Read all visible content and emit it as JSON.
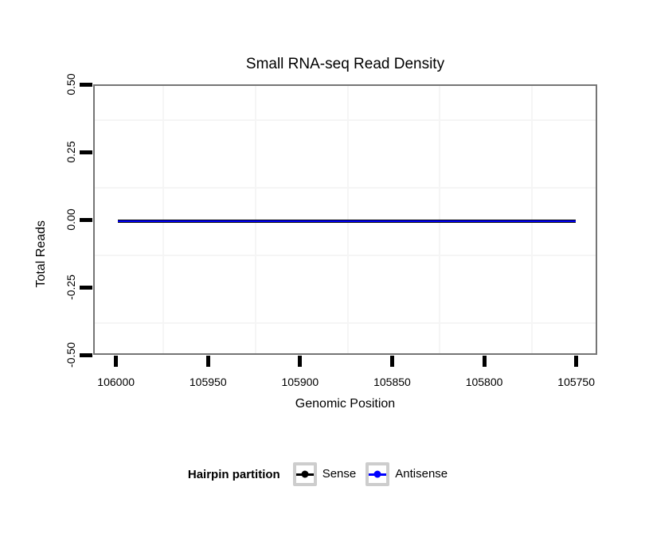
{
  "chart_data": {
    "type": "line",
    "title": "Small RNA-seq Read Density",
    "xlabel": "Genomic Position",
    "ylabel": "Total Reads",
    "x_axis": {
      "reversed": true,
      "lim": [
        106012.4,
        105738.6
      ],
      "ticks": [
        106000,
        105950,
        105900,
        105850,
        105800,
        105750
      ],
      "tick_labels": [
        "106000",
        "105950",
        "105900",
        "105850",
        "105800",
        "105750"
      ]
    },
    "y_axis": {
      "lim": [
        -0.5,
        0.5
      ],
      "ticks": [
        0.5,
        0.25,
        0,
        -0.25,
        -0.5
      ],
      "tick_labels": [
        "0.50",
        "0.25",
        "0.00",
        "-0.25",
        "-0.50"
      ]
    },
    "grid": {
      "minor_only": true,
      "color": "#f5f5f5"
    },
    "series": [
      {
        "name": "Sense",
        "color": "#000000",
        "x": [
          106000,
          105751
        ],
        "y": [
          0,
          0
        ]
      },
      {
        "name": "Antisense",
        "color": "#0000ff",
        "x": [
          106000,
          105751
        ],
        "y": [
          0,
          0
        ]
      }
    ],
    "legend": {
      "title": "Hairpin partition",
      "position": "bottom"
    },
    "colors": {
      "panel_border": "#757575",
      "tick": "#000000",
      "legend_key_border": "#cdcdcd"
    }
  }
}
